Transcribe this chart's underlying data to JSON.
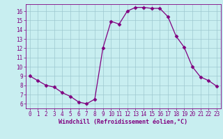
{
  "x": [
    0,
    1,
    2,
    3,
    4,
    5,
    6,
    7,
    8,
    9,
    10,
    11,
    12,
    13,
    14,
    15,
    16,
    17,
    18,
    19,
    20,
    21,
    22,
    23
  ],
  "y": [
    9.0,
    8.5,
    8.0,
    7.8,
    7.2,
    6.8,
    6.2,
    6.0,
    6.5,
    12.0,
    14.9,
    14.6,
    16.0,
    16.4,
    16.4,
    16.3,
    16.3,
    15.4,
    13.3,
    12.1,
    10.0,
    8.9,
    8.5,
    7.9
  ],
  "line_color": "#800080",
  "marker": "D",
  "marker_size": 2.5,
  "bg_color": "#c8eef0",
  "grid_color": "#9dc8d0",
  "xlabel": "Windchill (Refroidissement éolien,°C)",
  "xlabel_color": "#800080",
  "tick_color": "#800080",
  "xlim": [
    -0.5,
    23.5
  ],
  "ylim": [
    5.5,
    16.75
  ],
  "yticks": [
    6,
    7,
    8,
    9,
    10,
    11,
    12,
    13,
    14,
    15,
    16
  ],
  "xticks": [
    0,
    1,
    2,
    3,
    4,
    5,
    6,
    7,
    8,
    9,
    10,
    11,
    12,
    13,
    14,
    15,
    16,
    17,
    18,
    19,
    20,
    21,
    22,
    23
  ],
  "tick_fontsize": 5.5,
  "xlabel_fontsize": 6.0
}
